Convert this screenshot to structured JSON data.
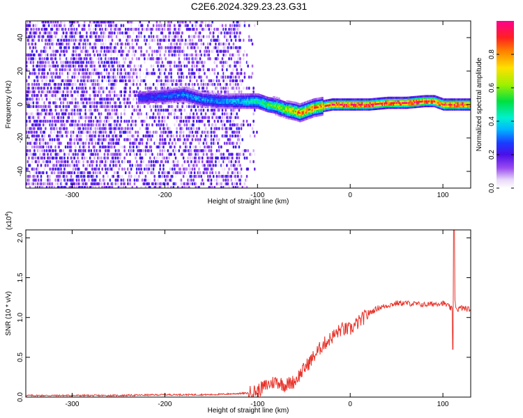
{
  "title": "C2E6.2024.329.23.23.G31",
  "chart_data": [
    {
      "type": "heatmap",
      "xlabel": "Height of straight line (km)",
      "ylabel": "Frequency (Hz)",
      "xlim": [
        -350,
        130
      ],
      "ylim": [
        -50,
        50
      ],
      "x_ticks": [
        "-300",
        "-200",
        "-100",
        "0",
        "100"
      ],
      "y_ticks": [
        "-40",
        "-20",
        "0",
        "20",
        "40"
      ],
      "colorbar": {
        "label": "Normalized spectral amplitude",
        "range": [
          0,
          1
        ],
        "ticks": [
          "0.0",
          "0.2",
          "0.4",
          "0.6",
          "0.8"
        ]
      },
      "ridge": {
        "x": [
          -230,
          -200,
          -180,
          -160,
          -140,
          -120,
          -100,
          -90,
          -80,
          -70,
          -60,
          -55,
          -50,
          -40,
          -30,
          -20,
          0,
          20,
          40,
          60,
          80,
          90,
          100,
          110,
          130
        ],
        "freq": [
          4,
          5,
          6,
          3,
          2,
          2,
          2,
          0,
          -1,
          -3,
          -4,
          -5,
          -4,
          -2,
          -1,
          0,
          0,
          0,
          1,
          1,
          2,
          2,
          0,
          0,
          0
        ],
        "amplitude": [
          0.25,
          0.3,
          0.35,
          0.35,
          0.35,
          0.4,
          0.5,
          0.55,
          0.6,
          0.7,
          0.8,
          0.9,
          0.85,
          0.85,
          0.9,
          1.0,
          1.0,
          1.0,
          1.0,
          1.0,
          1.0,
          1.0,
          0.95,
          1.0,
          1.0
        ]
      },
      "noise_region_x": [
        -350,
        -120
      ]
    },
    {
      "type": "line",
      "xlabel": "Height of straight line (km)",
      "ylabel": "SNR (10 * v/v)",
      "y_multiplier": "(x10",
      "y_multiplier_exp": "4",
      "y_multiplier_close": ")",
      "xlim": [
        -350,
        130
      ],
      "ylim": [
        0,
        2.1
      ],
      "x_ticks": [
        "-300",
        "-200",
        "-100",
        "0",
        "100"
      ],
      "y_ticks": [
        "0.0",
        "0.5",
        "1.0",
        "1.5",
        "2.0"
      ],
      "series": [
        {
          "color": "#e8332a",
          "x": [
            -350,
            -300,
            -250,
            -200,
            -150,
            -110,
            -100,
            -90,
            -80,
            -70,
            -60,
            -50,
            -40,
            -30,
            -20,
            -10,
            0,
            10,
            20,
            30,
            40,
            50,
            60,
            70,
            80,
            90,
            95,
            100,
            105,
            110,
            111,
            112,
            113,
            115,
            120,
            130
          ],
          "y": [
            0.02,
            0.02,
            0.02,
            0.03,
            0.03,
            0.05,
            0.08,
            0.15,
            0.2,
            0.15,
            0.2,
            0.35,
            0.5,
            0.65,
            0.75,
            0.85,
            0.85,
            0.95,
            1.05,
            1.12,
            1.15,
            1.18,
            1.18,
            1.17,
            1.16,
            1.17,
            1.18,
            1.18,
            1.15,
            1.1,
            0.6,
            2.1,
            1.2,
            1.1,
            1.12,
            1.1
          ]
        }
      ]
    }
  ],
  "colors": {
    "line": "#e8332a",
    "heat_bg": "#ffffff"
  }
}
